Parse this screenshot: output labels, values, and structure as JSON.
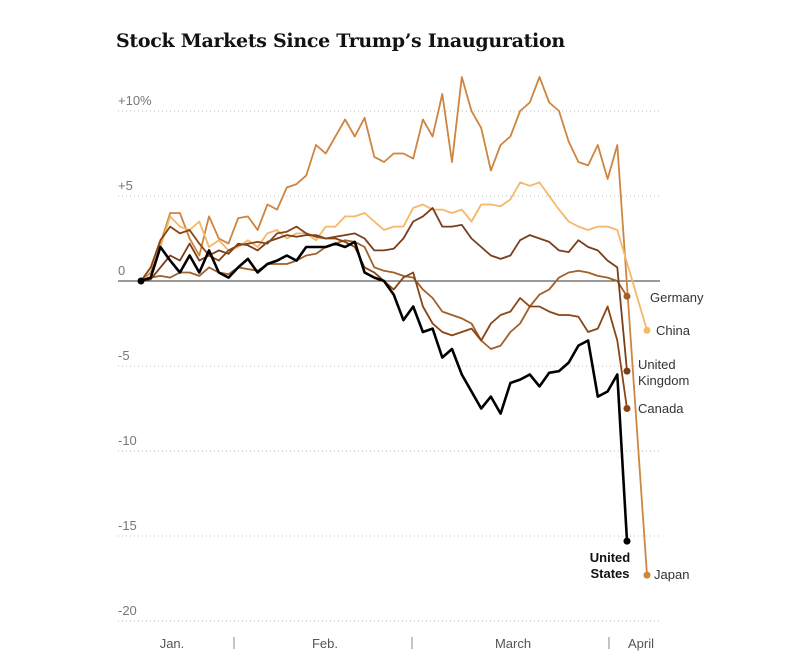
{
  "chart_data": {
    "type": "line",
    "title": "Stock Markets Since Trump’s Inauguration",
    "ylim": [
      -20,
      10
    ],
    "y_ticks": [
      {
        "value": 10,
        "label": "+10%"
      },
      {
        "value": 5,
        "label": "+5"
      },
      {
        "value": 0,
        "label": "0"
      },
      {
        "value": -5,
        "label": "-5"
      },
      {
        "value": -10,
        "label": "-10"
      },
      {
        "value": -15,
        "label": "-15"
      },
      {
        "value": -20,
        "label": "-20"
      }
    ],
    "x_labels": [
      "Jan.",
      "Feb.",
      "March",
      "April"
    ],
    "x_dividers": 3,
    "grid": "horizontal dotted",
    "x_index_range": [
      0,
      50
    ],
    "series": [
      {
        "name": "Japan",
        "label_lines": [
          "Japan"
        ],
        "color": "#cd853f",
        "bold": false,
        "values": [
          0,
          0.5,
          2.2,
          4,
          4,
          2.5,
          1.5,
          3.8,
          2.5,
          2.2,
          3.7,
          3.8,
          3,
          4.5,
          4.2,
          5.5,
          5.7,
          6.2,
          8,
          7.5,
          8.5,
          9.5,
          8.5,
          9.6,
          7.3,
          7,
          7.5,
          7.5,
          7.2,
          9.5,
          8.5,
          11,
          7,
          12,
          10,
          9,
          6.5,
          8,
          8.5,
          10,
          10.5,
          12,
          10.5,
          10,
          8.2,
          7,
          6.8,
          8,
          6,
          8,
          -17.3
        ]
      },
      {
        "name": "China",
        "label_lines": [
          "China"
        ],
        "color": "#f5b869",
        "bold": false,
        "values": [
          0,
          0.8,
          2,
          3.8,
          3.2,
          3,
          3.5,
          2,
          2.4,
          1.8,
          2,
          2.4,
          2,
          2.8,
          3,
          2.5,
          2.8,
          2.8,
          2.4,
          3.2,
          3.2,
          3.8,
          3.8,
          4,
          3.5,
          3,
          3.2,
          3.2,
          4.3,
          4.5,
          4.2,
          4.2,
          4,
          4.2,
          3.5,
          4.5,
          4.5,
          4.4,
          4.8,
          5.8,
          5.6,
          5.8,
          5,
          4.2,
          3.5,
          3.2,
          3,
          3.2,
          3.2,
          3,
          -2.9
        ]
      },
      {
        "name": "Germany",
        "label_lines": [
          "Germany"
        ],
        "color": "#a0602a",
        "bold": false,
        "values": [
          0,
          0.2,
          0.3,
          0.2,
          0.5,
          0.5,
          0.3,
          0.8,
          0.5,
          0.4,
          0.8,
          0.7,
          0.6,
          1,
          1,
          1,
          1.2,
          1.5,
          1.6,
          2,
          2.2,
          2.4,
          2.3,
          2,
          0.8,
          0.6,
          0.5,
          0.3,
          0.2,
          -0.5,
          -1,
          -1.8,
          -2,
          -2.2,
          -2.5,
          -3.5,
          -4,
          -3.8,
          -3,
          -2.5,
          -1.5,
          -0.8,
          -0.5,
          0.2,
          0.5,
          0.6,
          0.5,
          0.3,
          0.2,
          0,
          -0.9
        ]
      },
      {
        "name": "United Kingdom",
        "label_lines": [
          "United",
          "Kingdom"
        ],
        "color": "#7a3e1c",
        "bold": false,
        "values": [
          0,
          0.1,
          0.8,
          1.5,
          1.2,
          2.2,
          1.2,
          1.5,
          1.8,
          1.6,
          2.2,
          2.1,
          1.8,
          2.3,
          2.5,
          2.7,
          2.6,
          2.7,
          2.7,
          2.5,
          2.6,
          2.7,
          2.8,
          2.5,
          1.8,
          1.8,
          1.9,
          2.5,
          3.5,
          3.8,
          4.3,
          3.2,
          3.2,
          3.3,
          2.5,
          2,
          1.5,
          1.3,
          1.5,
          2.4,
          2.7,
          2.5,
          2.3,
          1.8,
          1.7,
          2.4,
          2,
          1.8,
          1.2,
          0.8,
          -5.3
        ]
      },
      {
        "name": "Canada",
        "label_lines": [
          "Canada"
        ],
        "color": "#8b4513",
        "bold": false,
        "values": [
          0,
          0.8,
          2.4,
          3.2,
          2.8,
          3,
          2.2,
          1.5,
          1.2,
          1.8,
          2.1,
          2.2,
          2.3,
          2.2,
          2.8,
          2.9,
          3.2,
          2.8,
          2.6,
          2.5,
          2.5,
          2.3,
          2,
          0.8,
          0.5,
          0,
          -0.5,
          0.2,
          0.5,
          -1.5,
          -2.5,
          -3,
          -3.2,
          -3,
          -2.8,
          -3.5,
          -2.5,
          -2,
          -1.8,
          -1,
          -1.5,
          -1.5,
          -1.8,
          -2,
          -2,
          -2.1,
          -3,
          -2.8,
          -1.5,
          -3.5,
          -7.5
        ]
      },
      {
        "name": "United States",
        "label_lines": [
          "United",
          "States"
        ],
        "color": "#000000",
        "bold": true,
        "values": [
          0,
          0.2,
          2,
          1.2,
          0.5,
          1.5,
          0.5,
          1.8,
          0.5,
          0.2,
          0.8,
          1.3,
          0.5,
          1,
          1.2,
          1.5,
          1.2,
          2,
          2,
          2,
          2.2,
          2,
          2.3,
          0.5,
          0.2,
          0,
          -0.8,
          -2.3,
          -1.5,
          -3,
          -2.8,
          -4.5,
          -4,
          -5.5,
          -6.5,
          -7.5,
          -6.8,
          -7.8,
          -6,
          -5.8,
          -5.5,
          -6.2,
          -5.4,
          -5.3,
          -4.8,
          -3.8,
          -3.5,
          -6.8,
          -6.5,
          -5.5,
          -15.3
        ]
      }
    ]
  }
}
